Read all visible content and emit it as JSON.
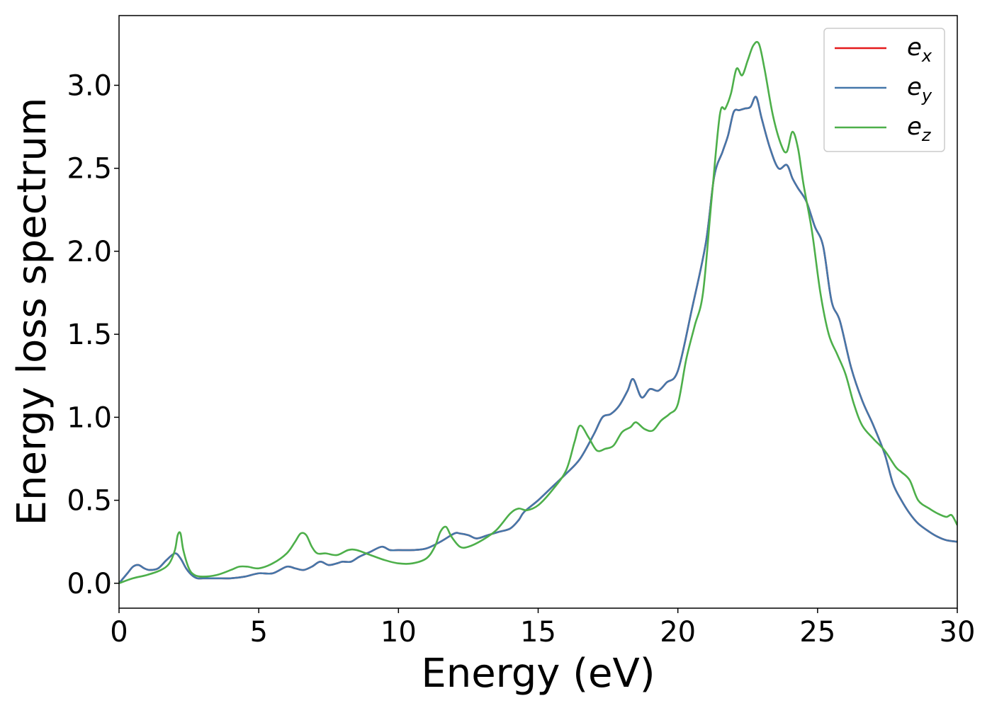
{
  "chart_data": {
    "type": "line",
    "title": "",
    "xlabel": "Energy (eV)",
    "ylabel": "Energy loss spectrum",
    "xlim": [
      0,
      30
    ],
    "ylim": [
      -0.15,
      3.42
    ],
    "xticks": [
      0,
      5,
      10,
      15,
      20,
      25,
      30
    ],
    "xtick_labels": [
      "0",
      "5",
      "10",
      "15",
      "20",
      "25",
      "30"
    ],
    "yticks": [
      0.0,
      0.5,
      1.0,
      1.5,
      2.0,
      2.5,
      3.0
    ],
    "ytick_labels": [
      "0.0",
      "0.5",
      "1.0",
      "1.5",
      "2.0",
      "2.5",
      "3.0"
    ],
    "grid": false,
    "legend_position": "top-right",
    "series": [
      {
        "name": "e_x",
        "label_main": "e",
        "label_sub": "x",
        "color": "#e41a1c",
        "x": [
          0,
          0.3,
          0.5,
          0.7,
          0.9,
          1.1,
          1.4,
          1.7,
          2.0,
          2.2,
          2.4,
          2.6,
          2.8,
          3.0,
          3.5,
          4.0,
          4.5,
          5.0,
          5.5,
          6.0,
          6.3,
          6.6,
          6.9,
          7.2,
          7.5,
          7.8,
          8.0,
          8.3,
          8.6,
          9.0,
          9.4,
          9.7,
          10.0,
          10.5,
          11.0,
          11.5,
          12.0,
          12.2,
          12.5,
          12.8,
          13.2,
          13.6,
          14.0,
          14.3,
          14.5,
          15.0,
          15.5,
          16.0,
          16.5,
          17.0,
          17.3,
          17.6,
          17.9,
          18.2,
          18.4,
          18.7,
          19.0,
          19.3,
          19.6,
          20.0,
          20.5,
          21.0,
          21.3,
          21.6,
          21.8,
          22.0,
          22.2,
          22.4,
          22.6,
          22.8,
          23.0,
          23.3,
          23.6,
          23.9,
          24.1,
          24.3,
          24.6,
          24.9,
          25.2,
          25.5,
          25.8,
          26.2,
          26.6,
          27.0,
          27.4,
          27.7,
          28.0,
          28.3,
          28.6,
          29.0,
          29.3,
          29.6,
          30.0
        ],
        "y": [
          0,
          0.06,
          0.1,
          0.11,
          0.09,
          0.08,
          0.09,
          0.14,
          0.18,
          0.15,
          0.09,
          0.05,
          0.03,
          0.03,
          0.03,
          0.03,
          0.04,
          0.06,
          0.06,
          0.1,
          0.09,
          0.08,
          0.1,
          0.13,
          0.11,
          0.12,
          0.13,
          0.13,
          0.16,
          0.19,
          0.22,
          0.2,
          0.2,
          0.2,
          0.21,
          0.25,
          0.3,
          0.3,
          0.29,
          0.27,
          0.29,
          0.31,
          0.33,
          0.38,
          0.43,
          0.5,
          0.58,
          0.66,
          0.75,
          0.9,
          1.0,
          1.02,
          1.07,
          1.16,
          1.23,
          1.12,
          1.17,
          1.16,
          1.21,
          1.28,
          1.65,
          2.05,
          2.45,
          2.6,
          2.7,
          2.84,
          2.85,
          2.86,
          2.87,
          2.93,
          2.8,
          2.62,
          2.5,
          2.52,
          2.44,
          2.38,
          2.3,
          2.15,
          2.03,
          1.7,
          1.58,
          1.3,
          1.1,
          0.95,
          0.78,
          0.6,
          0.5,
          0.42,
          0.36,
          0.31,
          0.28,
          0.26,
          0.25
        ]
      },
      {
        "name": "e_y",
        "label_main": "e",
        "label_sub": "y",
        "color": "#4477aa",
        "x": [
          0,
          0.3,
          0.5,
          0.7,
          0.9,
          1.1,
          1.4,
          1.7,
          2.0,
          2.2,
          2.4,
          2.6,
          2.8,
          3.0,
          3.5,
          4.0,
          4.5,
          5.0,
          5.5,
          6.0,
          6.3,
          6.6,
          6.9,
          7.2,
          7.5,
          7.8,
          8.0,
          8.3,
          8.6,
          9.0,
          9.4,
          9.7,
          10.0,
          10.5,
          11.0,
          11.5,
          12.0,
          12.2,
          12.5,
          12.8,
          13.2,
          13.6,
          14.0,
          14.3,
          14.5,
          15.0,
          15.5,
          16.0,
          16.5,
          17.0,
          17.3,
          17.6,
          17.9,
          18.2,
          18.4,
          18.7,
          19.0,
          19.3,
          19.6,
          20.0,
          20.5,
          21.0,
          21.3,
          21.6,
          21.8,
          22.0,
          22.2,
          22.4,
          22.6,
          22.8,
          23.0,
          23.3,
          23.6,
          23.9,
          24.1,
          24.3,
          24.6,
          24.9,
          25.2,
          25.5,
          25.8,
          26.2,
          26.6,
          27.0,
          27.4,
          27.7,
          28.0,
          28.3,
          28.6,
          29.0,
          29.3,
          29.6,
          30.0
        ],
        "y": [
          0,
          0.06,
          0.1,
          0.11,
          0.09,
          0.08,
          0.09,
          0.14,
          0.18,
          0.15,
          0.09,
          0.05,
          0.03,
          0.03,
          0.03,
          0.03,
          0.04,
          0.06,
          0.06,
          0.1,
          0.09,
          0.08,
          0.1,
          0.13,
          0.11,
          0.12,
          0.13,
          0.13,
          0.16,
          0.19,
          0.22,
          0.2,
          0.2,
          0.2,
          0.21,
          0.25,
          0.3,
          0.3,
          0.29,
          0.27,
          0.29,
          0.31,
          0.33,
          0.38,
          0.43,
          0.5,
          0.58,
          0.66,
          0.75,
          0.9,
          1.0,
          1.02,
          1.07,
          1.16,
          1.23,
          1.12,
          1.17,
          1.16,
          1.21,
          1.28,
          1.65,
          2.05,
          2.45,
          2.6,
          2.7,
          2.84,
          2.85,
          2.86,
          2.87,
          2.93,
          2.8,
          2.62,
          2.5,
          2.52,
          2.44,
          2.38,
          2.3,
          2.15,
          2.03,
          1.7,
          1.58,
          1.3,
          1.1,
          0.95,
          0.78,
          0.6,
          0.5,
          0.42,
          0.36,
          0.31,
          0.28,
          0.26,
          0.25
        ]
      },
      {
        "name": "e_z",
        "label_main": "e",
        "label_sub": "z",
        "color": "#4daf4a",
        "x": [
          0,
          0.5,
          1.0,
          1.5,
          1.8,
          2.0,
          2.1,
          2.2,
          2.3,
          2.5,
          2.7,
          3.0,
          3.5,
          4.0,
          4.3,
          4.6,
          5.0,
          5.5,
          6.0,
          6.3,
          6.5,
          6.7,
          6.9,
          7.1,
          7.4,
          7.8,
          8.2,
          8.5,
          9.0,
          9.5,
          10.0,
          10.5,
          11.0,
          11.3,
          11.5,
          11.7,
          11.9,
          12.2,
          12.5,
          13.0,
          13.5,
          14.0,
          14.3,
          14.6,
          15.0,
          15.5,
          16.0,
          16.3,
          16.5,
          16.8,
          17.1,
          17.4,
          17.7,
          18.0,
          18.3,
          18.5,
          18.8,
          19.1,
          19.4,
          19.7,
          20.0,
          20.3,
          20.6,
          20.9,
          21.2,
          21.5,
          21.7,
          21.9,
          22.1,
          22.3,
          22.5,
          22.7,
          22.9,
          23.1,
          23.4,
          23.7,
          23.9,
          24.1,
          24.3,
          24.5,
          24.8,
          25.1,
          25.4,
          25.7,
          26.0,
          26.3,
          26.6,
          27.0,
          27.4,
          27.8,
          28.0,
          28.3,
          28.6,
          29.0,
          29.3,
          29.6,
          29.8,
          30.0
        ],
        "y": [
          0,
          0.03,
          0.05,
          0.08,
          0.12,
          0.2,
          0.29,
          0.3,
          0.2,
          0.09,
          0.05,
          0.04,
          0.05,
          0.08,
          0.1,
          0.1,
          0.09,
          0.12,
          0.18,
          0.25,
          0.3,
          0.29,
          0.22,
          0.18,
          0.18,
          0.17,
          0.2,
          0.2,
          0.17,
          0.14,
          0.12,
          0.12,
          0.15,
          0.22,
          0.31,
          0.34,
          0.28,
          0.22,
          0.22,
          0.26,
          0.32,
          0.42,
          0.45,
          0.44,
          0.47,
          0.56,
          0.68,
          0.85,
          0.95,
          0.88,
          0.8,
          0.81,
          0.83,
          0.91,
          0.94,
          0.97,
          0.93,
          0.92,
          0.98,
          1.02,
          1.08,
          1.35,
          1.55,
          1.75,
          2.3,
          2.82,
          2.86,
          2.95,
          3.1,
          3.06,
          3.15,
          3.24,
          3.25,
          3.1,
          2.82,
          2.64,
          2.6,
          2.72,
          2.62,
          2.4,
          2.12,
          1.75,
          1.5,
          1.38,
          1.26,
          1.08,
          0.95,
          0.87,
          0.8,
          0.7,
          0.67,
          0.62,
          0.5,
          0.45,
          0.42,
          0.4,
          0.41,
          0.35
        ]
      }
    ]
  }
}
